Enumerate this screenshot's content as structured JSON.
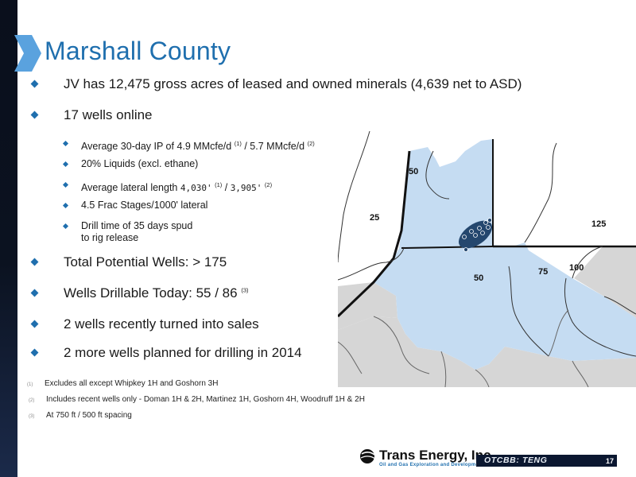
{
  "title": "Marshall County",
  "bullets": [
    {
      "text": "JV has 12,475 gross acres of leased and owned minerals (4,639 net to ASD)"
    },
    {
      "text": "17 wells online"
    },
    {
      "text": "Total Potential Wells:  > 175"
    },
    {
      "text": "Wells Drillable Today:  55 / 86",
      "sup": "(3)"
    },
    {
      "text": "2 wells recently turned into sales"
    },
    {
      "text": "2 more wells planned for drilling in 2014"
    }
  ],
  "subbullets": [
    {
      "pre": "Average 30-day IP of 4.9 MMcfe/d",
      "sup1": "(1)",
      "mid": " / 5.7 MMcfe/d",
      "sup2": "(2)"
    },
    {
      "text": "20% Liquids (excl. ethane)"
    },
    {
      "pre": "Average lateral length ",
      "val1": "4,030'",
      "sup1": "(1)",
      "mid": " / ",
      "val2": "3,905'",
      "sup2": "(2)"
    },
    {
      "text": "4.5 Frac Stages/1000' lateral"
    },
    {
      "line1": "Drill time of 35 days spud",
      "line2": "to rig release"
    }
  ],
  "footnotes": [
    {
      "num": "(1)",
      "text": "Excludes all except Whipkey 1H and Goshorn 3H"
    },
    {
      "num": "(2)",
      "text": "Includes recent wells only - Doman 1H & 2H, Martinez 1H, Goshorn 4H, Woodruff 1H & 2H"
    },
    {
      "num": "(3)",
      "text": "At 750 ft / 500 ft spacing"
    }
  ],
  "map_labels": {
    "l50_top": "50",
    "l25": "25",
    "l125": "125",
    "l50_mid": "50",
    "l75": "75",
    "l100": "100"
  },
  "logo": {
    "name": "Trans Energy, Inc.",
    "tagline": "Oil and Gas Exploration and Development"
  },
  "ticker": "OTCBB: TENG",
  "page_number": "17",
  "colors": {
    "accent": "#1f6fae",
    "leased_fill": "#c5dcf2",
    "other_fill": "#d6d6d6",
    "well_marker": "#24476e"
  }
}
